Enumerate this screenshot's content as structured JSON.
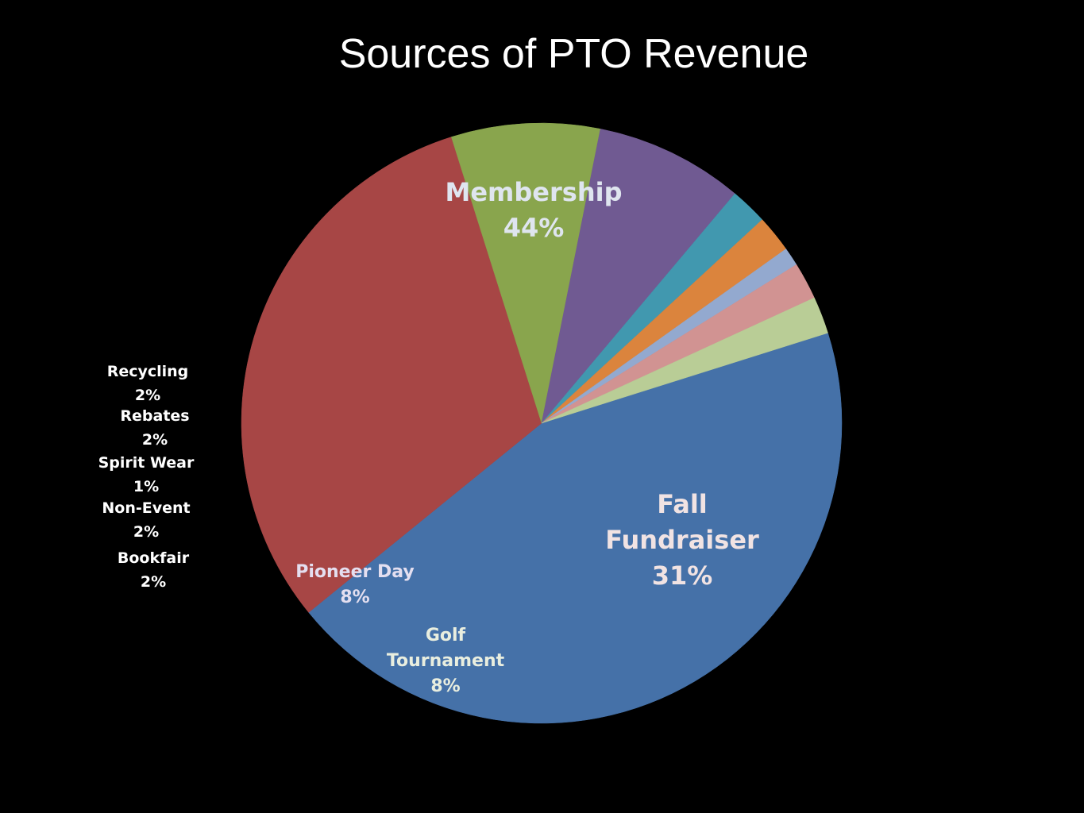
{
  "chart_data": {
    "type": "pie",
    "title": "Sources of PTO Revenue",
    "slices": [
      {
        "label": "Membership",
        "lines": [
          "Membership"
        ],
        "value": 44,
        "value_label": "44%",
        "color": "#4571a8"
      },
      {
        "label": "Fall Fundraiser",
        "lines": [
          "Fall",
          "Fundraiser"
        ],
        "value": 31,
        "value_label": "31%",
        "color": "#a74645"
      },
      {
        "label": "Golf Tournament",
        "lines": [
          "Golf",
          "Tournament"
        ],
        "value": 8,
        "value_label": "8%",
        "color": "#89a54d"
      },
      {
        "label": "Pioneer Day",
        "lines": [
          "Pioneer Day"
        ],
        "value": 8,
        "value_label": "8%",
        "color": "#705a92"
      },
      {
        "label": "Bookfair",
        "lines": [
          "Bookfair"
        ],
        "value": 2,
        "value_label": "2%",
        "color": "#4198af"
      },
      {
        "label": "Non-Event",
        "lines": [
          "Non-Event"
        ],
        "value": 2,
        "value_label": "2%",
        "color": "#db843d"
      },
      {
        "label": "Spirit Wear",
        "lines": [
          "Spirit Wear"
        ],
        "value": 1,
        "value_label": "1%",
        "color": "#93a9cf"
      },
      {
        "label": "Rebates",
        "lines": [
          "Rebates"
        ],
        "value": 2,
        "value_label": "2%",
        "color": "#d19392"
      },
      {
        "label": "Recycling",
        "lines": [
          "Recycling"
        ],
        "value": 2,
        "value_label": "2%",
        "color": "#b9cd96"
      }
    ]
  }
}
